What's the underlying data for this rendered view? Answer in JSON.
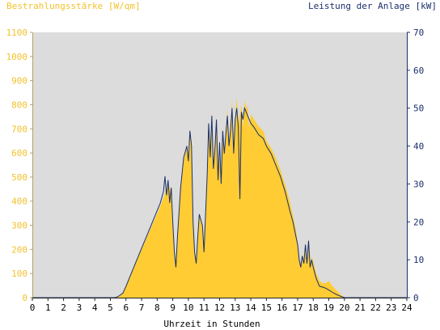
{
  "colors": {
    "background": "#ffffff",
    "plot_area": "#dcdcdc",
    "irradiance": "#ffcc33",
    "power": "#1a2f6b",
    "left_axis_text": "#f2c12e",
    "right_axis_text": "#1a2f6b",
    "x_axis_text": "#000000"
  },
  "chart_data": {
    "type": "area",
    "left_axis_title": "Bestrahlungsstärke [W/qm]",
    "right_axis_title": "Leistung der Anlage [kW]",
    "xlabel": "Uhrzeit in Stunden",
    "xlim": [
      0,
      24
    ],
    "x_ticks": [
      "0",
      "1",
      "2",
      "3",
      "4",
      "5",
      "6",
      "7",
      "8",
      "9",
      "10",
      "11",
      "12",
      "13",
      "14",
      "15",
      "16",
      "17",
      "18",
      "19",
      "20",
      "21",
      "22",
      "23",
      "24"
    ],
    "ylim_left": [
      0,
      1100
    ],
    "y_ticks_left": [
      "0",
      "100",
      "200",
      "300",
      "400",
      "500",
      "600",
      "700",
      "800",
      "900",
      "1000",
      "1100"
    ],
    "ylim_right": [
      0,
      70
    ],
    "y_ticks_right": [
      "0",
      "10",
      "20",
      "30",
      "40",
      "50",
      "60",
      "70"
    ],
    "grid": false,
    "series": [
      {
        "name": "Bestrahlungsstärke [W/qm]",
        "axis": "left",
        "style": "filled-area",
        "points": [
          [
            0,
            0
          ],
          [
            5.3,
            0
          ],
          [
            5.5,
            5
          ],
          [
            5.8,
            20
          ],
          [
            6.0,
            50
          ],
          [
            6.3,
            90
          ],
          [
            6.6,
            140
          ],
          [
            7.0,
            200
          ],
          [
            7.4,
            260
          ],
          [
            7.8,
            320
          ],
          [
            8.2,
            380
          ],
          [
            8.5,
            430
          ],
          [
            8.7,
            470
          ],
          [
            8.9,
            440
          ],
          [
            9.0,
            300
          ],
          [
            9.1,
            180
          ],
          [
            9.2,
            150
          ],
          [
            9.3,
            250
          ],
          [
            9.5,
            450
          ],
          [
            9.7,
            580
          ],
          [
            9.9,
            620
          ],
          [
            10.0,
            580
          ],
          [
            10.1,
            700
          ],
          [
            10.2,
            620
          ],
          [
            10.3,
            330
          ],
          [
            10.4,
            200
          ],
          [
            10.5,
            150
          ],
          [
            10.6,
            240
          ],
          [
            10.7,
            350
          ],
          [
            10.9,
            300
          ],
          [
            11.0,
            200
          ],
          [
            11.2,
            500
          ],
          [
            11.3,
            720
          ],
          [
            11.4,
            600
          ],
          [
            11.5,
            770
          ],
          [
            11.6,
            550
          ],
          [
            11.7,
            620
          ],
          [
            11.8,
            750
          ],
          [
            11.9,
            500
          ],
          [
            12.0,
            650
          ],
          [
            12.1,
            520
          ],
          [
            12.2,
            700
          ],
          [
            12.3,
            600
          ],
          [
            12.5,
            780
          ],
          [
            12.6,
            650
          ],
          [
            12.7,
            700
          ],
          [
            12.8,
            820
          ],
          [
            12.9,
            600
          ],
          [
            13.0,
            750
          ],
          [
            13.1,
            830
          ],
          [
            13.2,
            720
          ],
          [
            13.3,
            760
          ],
          [
            13.4,
            800
          ],
          [
            13.5,
            700
          ],
          [
            13.6,
            820
          ],
          [
            13.7,
            780
          ],
          [
            13.8,
            800
          ],
          [
            13.9,
            700
          ],
          [
            14.0,
            760
          ],
          [
            14.2,
            740
          ],
          [
            14.5,
            710
          ],
          [
            14.8,
            690
          ],
          [
            15.0,
            650
          ],
          [
            15.3,
            620
          ],
          [
            15.6,
            580
          ],
          [
            15.9,
            530
          ],
          [
            16.2,
            470
          ],
          [
            16.5,
            400
          ],
          [
            16.7,
            340
          ],
          [
            16.9,
            280
          ],
          [
            17.0,
            230
          ],
          [
            17.1,
            170
          ],
          [
            17.2,
            130
          ],
          [
            17.3,
            180
          ],
          [
            17.4,
            140
          ],
          [
            17.5,
            230
          ],
          [
            17.6,
            150
          ],
          [
            17.7,
            250
          ],
          [
            17.8,
            140
          ],
          [
            17.9,
            170
          ],
          [
            18.0,
            150
          ],
          [
            18.2,
            100
          ],
          [
            18.4,
            70
          ],
          [
            18.6,
            60
          ],
          [
            18.8,
            60
          ],
          [
            19.0,
            70
          ],
          [
            19.2,
            50
          ],
          [
            19.5,
            30
          ],
          [
            19.8,
            10
          ],
          [
            20.0,
            0
          ],
          [
            24,
            0
          ]
        ]
      },
      {
        "name": "Leistung der Anlage [kW]",
        "axis": "right",
        "style": "line",
        "points": [
          [
            0,
            0
          ],
          [
            5.3,
            0
          ],
          [
            5.5,
            0.3
          ],
          [
            5.8,
            1.2
          ],
          [
            6.0,
            3
          ],
          [
            6.3,
            6
          ],
          [
            6.6,
            9
          ],
          [
            7.0,
            13
          ],
          [
            7.4,
            17
          ],
          [
            7.8,
            21
          ],
          [
            8.2,
            25
          ],
          [
            8.4,
            28
          ],
          [
            8.5,
            32
          ],
          [
            8.6,
            27
          ],
          [
            8.7,
            31
          ],
          [
            8.8,
            25
          ],
          [
            8.9,
            29
          ],
          [
            9.0,
            20
          ],
          [
            9.1,
            12
          ],
          [
            9.2,
            8
          ],
          [
            9.3,
            16
          ],
          [
            9.5,
            29
          ],
          [
            9.7,
            37
          ],
          [
            9.9,
            40
          ],
          [
            10.0,
            36
          ],
          [
            10.1,
            44
          ],
          [
            10.2,
            40
          ],
          [
            10.3,
            20
          ],
          [
            10.4,
            12
          ],
          [
            10.5,
            9
          ],
          [
            10.6,
            16
          ],
          [
            10.7,
            22
          ],
          [
            10.9,
            19
          ],
          [
            11.0,
            12
          ],
          [
            11.2,
            32
          ],
          [
            11.3,
            46
          ],
          [
            11.4,
            37
          ],
          [
            11.5,
            48
          ],
          [
            11.6,
            34
          ],
          [
            11.7,
            39
          ],
          [
            11.8,
            47
          ],
          [
            11.9,
            31
          ],
          [
            12.0,
            41
          ],
          [
            12.1,
            30
          ],
          [
            12.2,
            44
          ],
          [
            12.3,
            38
          ],
          [
            12.5,
            48
          ],
          [
            12.6,
            40
          ],
          [
            12.7,
            44
          ],
          [
            12.8,
            50
          ],
          [
            12.9,
            38
          ],
          [
            13.0,
            47
          ],
          [
            13.1,
            50
          ],
          [
            13.2,
            45
          ],
          [
            13.3,
            26
          ],
          [
            13.4,
            49
          ],
          [
            13.5,
            47
          ],
          [
            13.6,
            50
          ],
          [
            13.8,
            48
          ],
          [
            14.0,
            46
          ],
          [
            14.2,
            45
          ],
          [
            14.5,
            43
          ],
          [
            14.8,
            42
          ],
          [
            15.0,
            40
          ],
          [
            15.3,
            38
          ],
          [
            15.6,
            35
          ],
          [
            15.9,
            32
          ],
          [
            16.2,
            28
          ],
          [
            16.5,
            23
          ],
          [
            16.7,
            20
          ],
          [
            16.9,
            16
          ],
          [
            17.0,
            14
          ],
          [
            17.1,
            10
          ],
          [
            17.2,
            8
          ],
          [
            17.3,
            11
          ],
          [
            17.4,
            9
          ],
          [
            17.5,
            14
          ],
          [
            17.6,
            9
          ],
          [
            17.7,
            15
          ],
          [
            17.8,
            8
          ],
          [
            17.9,
            10
          ],
          [
            18.0,
            8
          ],
          [
            18.2,
            5
          ],
          [
            18.4,
            3
          ],
          [
            18.6,
            2.8
          ],
          [
            18.8,
            2.5
          ],
          [
            19.0,
            2
          ],
          [
            19.2,
            1.5
          ],
          [
            19.5,
            0.8
          ],
          [
            19.8,
            0.3
          ],
          [
            20.0,
            0
          ],
          [
            24,
            0
          ]
        ]
      }
    ]
  }
}
